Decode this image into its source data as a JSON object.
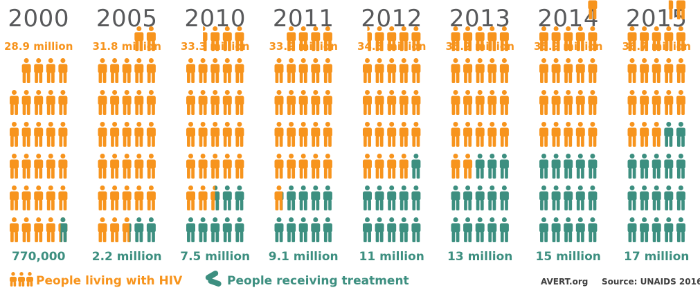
{
  "colors": {
    "living": "#f7941d",
    "treatment": "#3d8f80",
    "year": "#58595b"
  },
  "chart_data": {
    "type": "pictograph",
    "unit_per_icon_million": 1,
    "years": [
      "2000",
      "2005",
      "2010",
      "2011",
      "2012",
      "2013",
      "2014",
      "2015"
    ],
    "living_labels": [
      "28.9 million",
      "31.8 million",
      "33.3 million",
      "33.9 million",
      "34.5 million",
      "35.2 million",
      "35.9 million",
      "36.7 million"
    ],
    "treatment_labels": [
      "770,000",
      "2.2 million",
      "7.5 million",
      "9.1 million",
      "11 million",
      "13 million",
      "15 million",
      "17 million"
    ],
    "series": [
      {
        "name": "People living with HIV",
        "values": [
          28.9,
          31.8,
          33.3,
          33.9,
          34.5,
          35.2,
          35.9,
          36.7
        ]
      },
      {
        "name": "People receiving treatment",
        "values": [
          0.77,
          2.2,
          7.5,
          9.1,
          11,
          13,
          15,
          17
        ]
      }
    ]
  },
  "legend": {
    "living": "People living with HIV",
    "treatment": "People receiving treatment"
  },
  "footer": {
    "brand": "AVERT.org",
    "source": "Source: UNAIDS 2016"
  }
}
